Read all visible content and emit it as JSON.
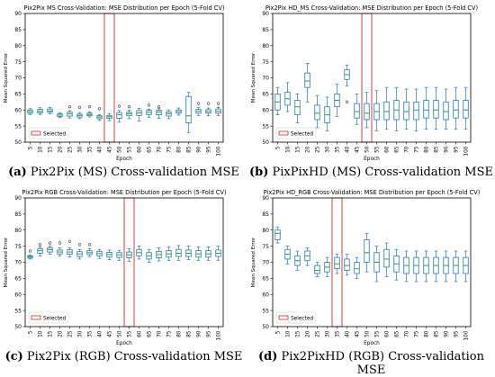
{
  "captions": [
    {
      "label": "(a)",
      "text": " Pix2Pix (MS) Cross-validation MSE"
    },
    {
      "label": "(b)",
      "text": " PixPixHD (MS) Cross-validation MSE"
    },
    {
      "label": "(c)",
      "text": " Pix2Pix (RGB) Cross-validation MSE"
    },
    {
      "label": "(d)",
      "text": " Pix2PixHD (RGB) Cross-validation MSE"
    }
  ],
  "colors": {
    "box": "#1f77b4",
    "median": "#2ca02c",
    "selected": "#d62728",
    "frame": "#000000"
  },
  "chart_data": [
    {
      "type": "box",
      "title": "Pix2Pix MS Cross-Validation: MSE Distribution per Epoch (5-Fold CV)",
      "xlabel": "Epoch",
      "ylabel": "Mean Squared Error",
      "ylim": [
        50,
        90
      ],
      "yticks": [
        50,
        55,
        60,
        65,
        70,
        75,
        80,
        85,
        90
      ],
      "categories": [
        "5",
        "10",
        "15",
        "20",
        "25",
        "30",
        "35",
        "40",
        "45",
        "50",
        "55",
        "60",
        "65",
        "70",
        "75",
        "80",
        "85",
        "90",
        "95",
        "100"
      ],
      "selected": "45",
      "legend": {
        "label": "Selected",
        "placement": "bottom-left"
      },
      "boxes": [
        [
          58.6,
          59.0,
          59.5,
          60.0,
          60.4
        ],
        [
          58.6,
          59.1,
          59.6,
          60.2,
          60.7
        ],
        [
          58.8,
          59.3,
          59.7,
          60.3,
          60.8
        ],
        [
          57.6,
          58.0,
          58.4,
          58.8,
          59.2
        ],
        [
          57.5,
          58.1,
          58.8,
          59.3,
          59.8
        ],
        [
          57.3,
          57.8,
          58.3,
          58.7,
          59.2
        ],
        [
          57.8,
          58.2,
          58.6,
          59.0,
          59.4
        ],
        [
          56.8,
          57.3,
          57.8,
          58.2,
          58.6
        ],
        [
          56.7,
          57.4,
          57.9,
          58.3,
          58.9
        ],
        [
          56.2,
          57.4,
          58.5,
          59.2,
          59.8
        ],
        [
          57.3,
          58.2,
          58.8,
          59.3,
          59.9
        ],
        [
          56.6,
          58.3,
          59.1,
          59.8,
          60.5
        ],
        [
          57.7,
          58.6,
          59.3,
          59.9,
          60.3
        ],
        [
          57.4,
          58.5,
          59.4,
          59.9,
          60.4
        ],
        [
          57.3,
          58.1,
          58.8,
          59.4,
          60.0
        ],
        [
          58.4,
          59.0,
          59.5,
          60.0,
          60.6
        ],
        [
          53.0,
          56.0,
          58.2,
          64.2,
          65.5
        ],
        [
          58.3,
          59.0,
          59.6,
          60.2,
          60.7
        ],
        [
          58.2,
          59.0,
          59.5,
          60.1,
          60.6
        ],
        [
          58.2,
          59.0,
          59.6,
          60.3,
          60.8
        ]
      ],
      "outliers": [
        [],
        [],
        [],
        [],
        [
          61.0
        ],
        [
          60.8
        ],
        [
          61.0
        ],
        [
          60.4
        ],
        [],
        [
          61.2
        ],
        [
          61.0
        ],
        [],
        [
          61.5
        ],
        [
          61.0
        ],
        [],
        [],
        [],
        [
          62.0
        ],
        [
          62.0
        ],
        [
          62.0
        ]
      ]
    },
    {
      "type": "box",
      "title": "Pix2Pix HD_MS Cross-Validation: MSE Distribution per Epoch (5-Fold CV)",
      "xlabel": "Epoch",
      "ylabel": "Mean Squared Error",
      "ylim": [
        50,
        90
      ],
      "yticks": [
        50,
        55,
        60,
        65,
        70,
        75,
        80,
        85,
        90
      ],
      "categories": [
        "5",
        "10",
        "15",
        "20",
        "25",
        "30",
        "35",
        "40",
        "45",
        "50",
        "55",
        "60",
        "65",
        "70",
        "75",
        "80",
        "85",
        "90",
        "95",
        "100"
      ],
      "selected": "50",
      "legend": {
        "label": "Selected",
        "placement": "bottom-left"
      },
      "boxes": [
        [
          58.5,
          60.0,
          62.5,
          65.0,
          67.0
        ],
        [
          59.5,
          61.5,
          63.5,
          65.5,
          68.5
        ],
        [
          56.0,
          58.5,
          61.0,
          63.0,
          65.0
        ],
        [
          62.5,
          67.0,
          69.0,
          71.5,
          74.5
        ],
        [
          54.5,
          57.0,
          59.0,
          61.5,
          64.5
        ],
        [
          53.5,
          56.0,
          58.5,
          61.0,
          64.0
        ],
        [
          58.0,
          61.0,
          63.0,
          65.0,
          68.0
        ],
        [
          67.5,
          69.5,
          71.0,
          72.5,
          74.0
        ],
        [
          55.5,
          57.5,
          59.5,
          62.0,
          65.0
        ],
        [
          54.5,
          57.0,
          59.0,
          62.0,
          65.5
        ],
        [
          53.5,
          57.0,
          59.5,
          62.0,
          66.0
        ],
        [
          54.0,
          57.0,
          59.5,
          62.5,
          67.0
        ],
        [
          53.5,
          57.0,
          60.0,
          63.0,
          67.0
        ],
        [
          54.0,
          57.0,
          59.5,
          62.5,
          66.5
        ],
        [
          53.5,
          57.0,
          60.0,
          62.5,
          66.5
        ],
        [
          54.0,
          57.5,
          60.0,
          63.0,
          67.0
        ],
        [
          54.0,
          57.5,
          60.0,
          63.0,
          67.0
        ],
        [
          54.0,
          57.0,
          59.5,
          62.5,
          66.5
        ],
        [
          54.0,
          57.5,
          60.0,
          63.0,
          67.0
        ],
        [
          54.0,
          57.5,
          60.0,
          63.0,
          67.0
        ]
      ],
      "outliers": [
        [],
        [],
        [],
        [],
        [],
        [],
        [],
        [
          62.5
        ],
        [],
        [],
        [],
        [],
        [],
        [],
        [],
        [],
        [],
        [],
        [],
        []
      ]
    },
    {
      "type": "box",
      "title": "Pix2Pix RGB Cross-Validation: MSE Distribution per Epoch (5-Fold CV)",
      "xlabel": "Epoch",
      "ylabel": "Mean Squared Error",
      "ylim": [
        50,
        90
      ],
      "yticks": [
        50,
        55,
        60,
        65,
        70,
        75,
        80,
        85,
        90
      ],
      "categories": [
        "5",
        "10",
        "15",
        "20",
        "25",
        "30",
        "35",
        "40",
        "45",
        "50",
        "55",
        "60",
        "65",
        "70",
        "75",
        "80",
        "85",
        "90",
        "95",
        "100"
      ],
      "selected": "55",
      "legend": {
        "label": "Selected",
        "placement": "bottom-left"
      },
      "boxes": [
        [
          71.0,
          71.3,
          71.7,
          72.0,
          72.3
        ],
        [
          72.0,
          72.8,
          73.6,
          74.2,
          74.8
        ],
        [
          72.5,
          73.2,
          73.9,
          74.5,
          75.0
        ],
        [
          72.0,
          72.6,
          73.2,
          73.8,
          74.5
        ],
        [
          71.6,
          72.5,
          73.2,
          73.9,
          74.5
        ],
        [
          71.0,
          71.8,
          72.6,
          73.3,
          74.0
        ],
        [
          71.8,
          72.4,
          73.0,
          73.6,
          74.2
        ],
        [
          71.2,
          72.0,
          72.7,
          73.4,
          74.0
        ],
        [
          70.8,
          71.6,
          72.4,
          73.1,
          73.8
        ],
        [
          70.6,
          71.5,
          72.3,
          73.0,
          73.7
        ],
        [
          70.3,
          71.4,
          72.3,
          73.2,
          74.2
        ],
        [
          71.0,
          72.0,
          73.0,
          74.0,
          75.0
        ],
        [
          70.0,
          71.0,
          72.0,
          73.0,
          74.0
        ],
        [
          70.4,
          71.4,
          72.4,
          73.4,
          74.5
        ],
        [
          70.6,
          71.6,
          72.6,
          73.6,
          74.8
        ],
        [
          70.6,
          71.8,
          72.8,
          74.0,
          75.2
        ],
        [
          70.8,
          71.8,
          72.8,
          73.8,
          75.0
        ],
        [
          70.6,
          71.6,
          72.6,
          73.6,
          74.8
        ],
        [
          70.6,
          71.6,
          72.6,
          73.6,
          74.8
        ],
        [
          70.6,
          71.8,
          72.8,
          73.8,
          75.0
        ]
      ],
      "outliers": [
        [
          73.5
        ],
        [
          75.5
        ],
        [
          76.0
        ],
        [
          76.0
        ],
        [
          76.5
        ],
        [
          75.5
        ],
        [
          75.5
        ],
        [],
        [],
        [],
        [],
        [],
        [],
        [],
        [],
        [],
        [],
        [],
        [],
        []
      ]
    },
    {
      "type": "box",
      "title": "Pix2Pix HD_RGB Cross-Validation: MSE Distribution per Epoch (5-Fold CV)",
      "xlabel": "Epoch",
      "ylabel": "Mean Squared Error",
      "ylim": [
        50,
        90
      ],
      "yticks": [
        50,
        55,
        60,
        65,
        70,
        75,
        80,
        85,
        90
      ],
      "categories": [
        "5",
        "10",
        "15",
        "20",
        "25",
        "30",
        "35",
        "40",
        "45",
        "50",
        "55",
        "60",
        "65",
        "70",
        "75",
        "80",
        "85",
        "90",
        "95",
        "100"
      ],
      "selected": "35",
      "legend": {
        "label": "Selected",
        "placement": "bottom-left"
      },
      "boxes": [
        [
          76.0,
          77.0,
          79.0,
          80.0,
          81.0
        ],
        [
          69.5,
          71.0,
          72.5,
          74.0,
          75.0
        ],
        [
          67.5,
          69.0,
          70.5,
          72.0,
          73.5
        ],
        [
          69.0,
          70.5,
          72.0,
          73.5,
          74.5
        ],
        [
          65.5,
          66.5,
          67.5,
          69.0,
          70.0
        ],
        [
          65.5,
          67.0,
          68.5,
          70.0,
          71.5
        ],
        [
          66.5,
          68.0,
          69.5,
          71.5,
          72.5
        ],
        [
          66.0,
          67.5,
          69.0,
          71.0,
          72.5
        ],
        [
          65.0,
          66.5,
          68.0,
          70.0,
          71.5
        ],
        [
          67.0,
          70.0,
          73.0,
          77.0,
          79.0
        ],
        [
          64.0,
          67.0,
          70.0,
          73.0,
          75.0
        ],
        [
          65.5,
          68.5,
          71.0,
          74.0,
          76.0
        ],
        [
          64.5,
          67.0,
          69.5,
          72.0,
          74.0
        ],
        [
          64.0,
          66.5,
          69.0,
          71.5,
          73.5
        ],
        [
          64.0,
          66.5,
          69.0,
          71.5,
          73.5
        ],
        [
          64.0,
          66.5,
          69.0,
          71.5,
          73.5
        ],
        [
          64.0,
          66.5,
          69.0,
          71.5,
          73.5
        ],
        [
          64.0,
          66.5,
          69.0,
          71.5,
          73.5
        ],
        [
          64.0,
          66.5,
          69.0,
          71.5,
          73.5
        ],
        [
          64.0,
          66.5,
          69.0,
          71.5,
          73.5
        ]
      ],
      "outliers": [
        [],
        [],
        [],
        [],
        [],
        [],
        [],
        [],
        [],
        [],
        [],
        [],
        [],
        [],
        [],
        [],
        [],
        [],
        [],
        []
      ]
    }
  ]
}
